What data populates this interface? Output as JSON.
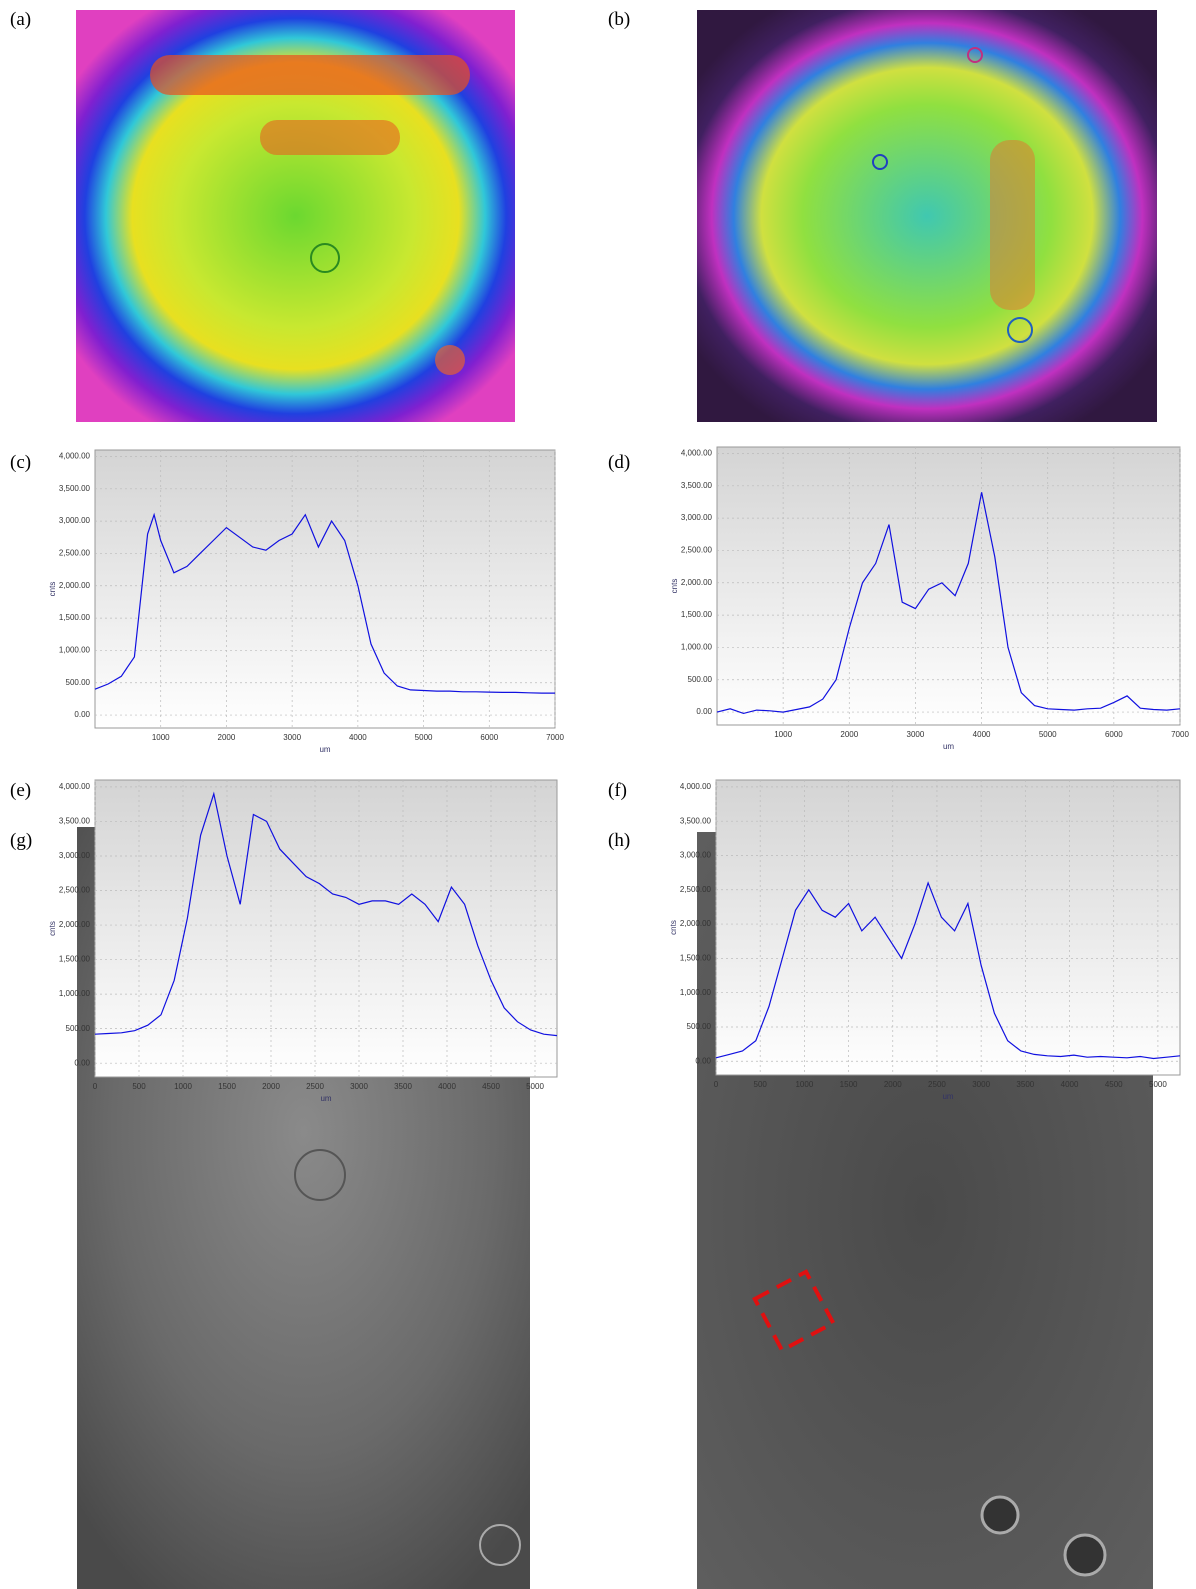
{
  "panel_labels": [
    "(a)",
    "(b)",
    "(c)",
    "(d)",
    "(e)",
    "(f)",
    "(g)",
    "(h)"
  ],
  "chart_data": [
    {
      "type": "line",
      "xlabel": "um",
      "ylabel": "cnts",
      "color": "#1010e0",
      "grid": true,
      "xlim": [
        0,
        7000
      ],
      "ylim": [
        -200,
        4100
      ],
      "xticks": [
        1000,
        2000,
        3000,
        4000,
        5000,
        6000,
        7000
      ],
      "yticks": [
        {
          "value": 0,
          "label": "0.00"
        },
        {
          "value": 500,
          "label": "500.00"
        },
        {
          "value": 1000,
          "label": "1,000.00"
        },
        {
          "value": 1500,
          "label": "1,500.00"
        },
        {
          "value": 2000,
          "label": "2,000.00"
        },
        {
          "value": 2500,
          "label": "2,500.00"
        },
        {
          "value": 3000,
          "label": "3,000.00"
        },
        {
          "value": 3500,
          "label": "3,500.00"
        },
        {
          "value": 4000,
          "label": "4,000.00"
        }
      ],
      "x": [
        0,
        200,
        400,
        600,
        800,
        900,
        1000,
        1200,
        1400,
        1600,
        1800,
        2000,
        2200,
        2400,
        2600,
        2800,
        3000,
        3200,
        3400,
        3600,
        3800,
        4000,
        4200,
        4400,
        4600,
        4800,
        5000,
        5200,
        5400,
        5600,
        5800,
        6000,
        6200,
        6400,
        6600,
        6800,
        7000
      ],
      "values": [
        400,
        480,
        600,
        900,
        2800,
        3100,
        2700,
        2200,
        2300,
        2500,
        2700,
        2900,
        2750,
        2600,
        2550,
        2700,
        2800,
        3100,
        2600,
        3000,
        2700,
        2000,
        1100,
        650,
        450,
        390,
        380,
        370,
        370,
        360,
        360,
        355,
        350,
        350,
        345,
        340,
        340
      ]
    },
    {
      "type": "line",
      "xlabel": "um",
      "ylabel": "cnts",
      "color": "#1010e0",
      "grid": true,
      "xlim": [
        0,
        7000
      ],
      "ylim": [
        -200,
        4100
      ],
      "xticks": [
        1000,
        2000,
        3000,
        4000,
        5000,
        6000,
        7000
      ],
      "yticks": [
        {
          "value": 0,
          "label": "0.00"
        },
        {
          "value": 500,
          "label": "500.00"
        },
        {
          "value": 1000,
          "label": "1,000.00"
        },
        {
          "value": 1500,
          "label": "1,500.00"
        },
        {
          "value": 2000,
          "label": "2,000.00"
        },
        {
          "value": 2500,
          "label": "2,500.00"
        },
        {
          "value": 3000,
          "label": "3,000.00"
        },
        {
          "value": 3500,
          "label": "3,500.00"
        },
        {
          "value": 4000,
          "label": "4,000.00"
        }
      ],
      "x": [
        0,
        200,
        400,
        600,
        800,
        1000,
        1200,
        1400,
        1600,
        1800,
        2000,
        2200,
        2400,
        2600,
        2800,
        3000,
        3200,
        3400,
        3600,
        3800,
        4000,
        4200,
        4400,
        4600,
        4800,
        5000,
        5200,
        5400,
        5600,
        5800,
        6000,
        6200,
        6400,
        6600,
        6800,
        7000
      ],
      "values": [
        0,
        50,
        -20,
        30,
        20,
        0,
        40,
        80,
        200,
        500,
        1300,
        2000,
        2300,
        2900,
        1700,
        1600,
        1900,
        2000,
        1800,
        2300,
        3400,
        2400,
        1000,
        300,
        100,
        50,
        40,
        30,
        50,
        60,
        150,
        250,
        60,
        40,
        30,
        50
      ]
    },
    {
      "type": "line",
      "xlabel": "um",
      "ylabel": "cnts",
      "color": "#1010e0",
      "grid": true,
      "xlim": [
        0,
        5250
      ],
      "ylim": [
        -200,
        4100
      ],
      "xticks": [
        0,
        500,
        1000,
        1500,
        2000,
        2500,
        3000,
        3500,
        4000,
        4500,
        5000
      ],
      "yticks": [
        {
          "value": 0,
          "label": "0.00"
        },
        {
          "value": 500,
          "label": "500.00"
        },
        {
          "value": 1000,
          "label": "1,000.00"
        },
        {
          "value": 1500,
          "label": "1,500.00"
        },
        {
          "value": 2000,
          "label": "2,000.00"
        },
        {
          "value": 2500,
          "label": "2,500.00"
        },
        {
          "value": 3000,
          "label": "3,000.00"
        },
        {
          "value": 3500,
          "label": "3,500.00"
        },
        {
          "value": 4000,
          "label": "4,000.00"
        }
      ],
      "x": [
        0,
        150,
        300,
        450,
        600,
        750,
        900,
        1050,
        1200,
        1350,
        1500,
        1650,
        1800,
        1950,
        2100,
        2250,
        2400,
        2550,
        2700,
        2850,
        3000,
        3150,
        3300,
        3450,
        3600,
        3750,
        3900,
        4050,
        4200,
        4350,
        4500,
        4650,
        4800,
        4950,
        5100,
        5250
      ],
      "values": [
        420,
        430,
        440,
        470,
        550,
        700,
        1200,
        2100,
        3300,
        3900,
        3000,
        2300,
        3600,
        3500,
        3100,
        2900,
        2700,
        2600,
        2450,
        2400,
        2300,
        2350,
        2350,
        2300,
        2450,
        2300,
        2050,
        2550,
        2300,
        1700,
        1200,
        800,
        600,
        480,
        420,
        400
      ]
    },
    {
      "type": "line",
      "xlabel": "um",
      "ylabel": "cnts",
      "color": "#1010e0",
      "grid": true,
      "xlim": [
        0,
        5250
      ],
      "ylim": [
        -200,
        4100
      ],
      "xticks": [
        0,
        500,
        1000,
        1500,
        2000,
        2500,
        3000,
        3500,
        4000,
        4500,
        5000
      ],
      "yticks": [
        {
          "value": 0,
          "label": "0.00"
        },
        {
          "value": 500,
          "label": "500.00"
        },
        {
          "value": 1000,
          "label": "1,000.00"
        },
        {
          "value": 1500,
          "label": "1,500.00"
        },
        {
          "value": 2000,
          "label": "2,000.00"
        },
        {
          "value": 2500,
          "label": "2,500.00"
        },
        {
          "value": 3000,
          "label": "3,000.00"
        },
        {
          "value": 3500,
          "label": "3,500.00"
        },
        {
          "value": 4000,
          "label": "4,000.00"
        }
      ],
      "x": [
        0,
        150,
        300,
        450,
        600,
        750,
        900,
        1050,
        1200,
        1350,
        1500,
        1650,
        1800,
        1950,
        2100,
        2250,
        2400,
        2550,
        2700,
        2850,
        3000,
        3150,
        3300,
        3450,
        3600,
        3750,
        3900,
        4050,
        4200,
        4350,
        4500,
        4650,
        4800,
        4950,
        5100,
        5250
      ],
      "values": [
        50,
        100,
        150,
        300,
        800,
        1500,
        2200,
        2500,
        2200,
        2100,
        2300,
        1900,
        2100,
        1800,
        1500,
        2000,
        2600,
        2100,
        1900,
        2300,
        1400,
        700,
        300,
        150,
        100,
        80,
        70,
        90,
        60,
        70,
        60,
        50,
        70,
        40,
        60,
        80
      ]
    }
  ]
}
